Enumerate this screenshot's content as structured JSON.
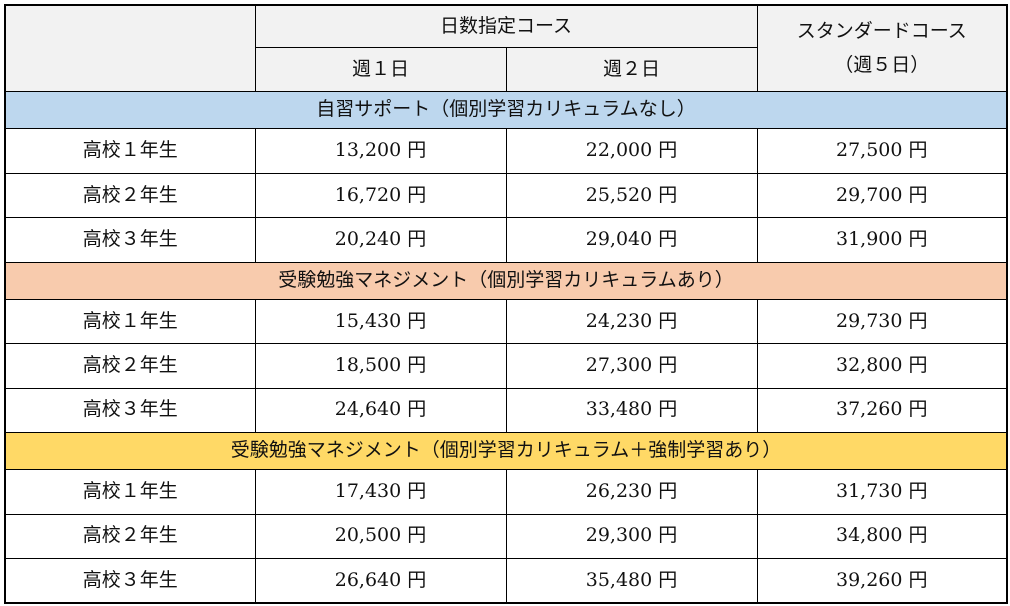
{
  "header": {
    "day_course": "日数指定コース",
    "week1": "週１日",
    "week2": "週２日",
    "standard_line1": "スタンダードコース",
    "standard_line2": "（週５日）"
  },
  "sections": [
    {
      "title": "自習サポート（個別学習カリキュラムなし）",
      "color": "#bdd7ee",
      "rows": [
        {
          "grade": "高校１年生",
          "w1": "13,200 円",
          "w2": "22,000 円",
          "std": "27,500 円"
        },
        {
          "grade": "高校２年生",
          "w1": "16,720 円",
          "w2": "25,520 円",
          "std": "29,700 円"
        },
        {
          "grade": "高校３年生",
          "w1": "20,240 円",
          "w2": "29,040 円",
          "std": "31,900 円"
        }
      ]
    },
    {
      "title": "受験勉強マネジメント（個別学習カリキュラムあり）",
      "color": "#f8cbad",
      "rows": [
        {
          "grade": "高校１年生",
          "w1": "15,430 円",
          "w2": "24,230 円",
          "std": "29,730 円"
        },
        {
          "grade": "高校２年生",
          "w1": "18,500 円",
          "w2": "27,300 円",
          "std": "32,800 円"
        },
        {
          "grade": "高校３年生",
          "w1": "24,640 円",
          "w2": "33,480 円",
          "std": "37,260 円"
        }
      ]
    },
    {
      "title": "受験勉強マネジメント（個別学習カリキュラム＋強制学習あり）",
      "color": "#ffd966",
      "rows": [
        {
          "grade": "高校１年生",
          "w1": "17,430 円",
          "w2": "26,230 円",
          "std": "31,730 円"
        },
        {
          "grade": "高校２年生",
          "w1": "20,500 円",
          "w2": "29,300 円",
          "std": "34,800 円"
        },
        {
          "grade": "高校３年生",
          "w1": "26,640 円",
          "w2": "35,480 円",
          "std": "39,260 円"
        }
      ]
    }
  ]
}
